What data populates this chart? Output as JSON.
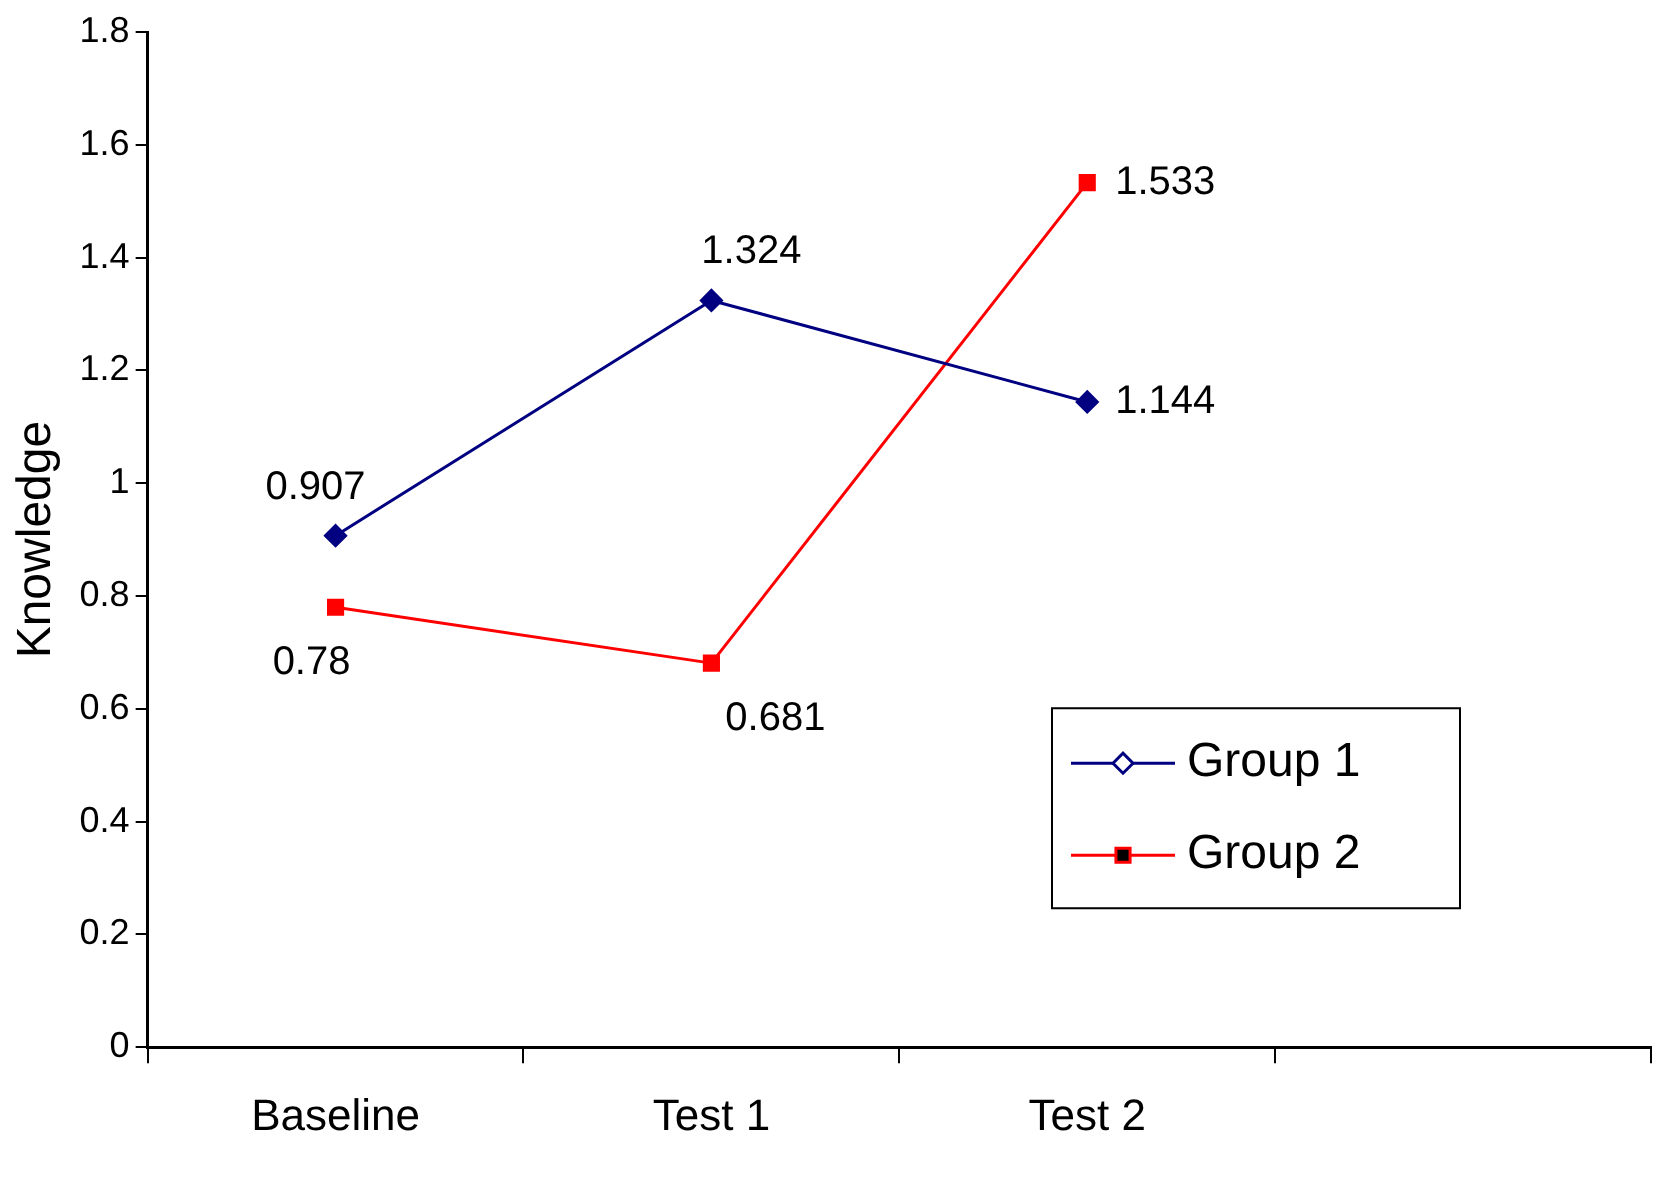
{
  "chart_data": {
    "type": "line",
    "ylabel": "Knowledge",
    "categories": [
      "Baseline",
      "Test 1",
      "Test 2",
      null
    ],
    "series": [
      {
        "name": "Group 1",
        "color": "#000080",
        "marker": "diamond",
        "values": [
          0.907,
          1.324,
          1.144,
          null
        ]
      },
      {
        "name": "Group 2",
        "color": "#ff0000",
        "marker": "square",
        "values": [
          0.78,
          0.681,
          1.533,
          null
        ]
      }
    ],
    "ylim": [
      0,
      1.8
    ],
    "yticks": [
      0,
      0.2,
      0.4,
      0.6,
      0.8,
      1,
      1.2,
      1.4,
      1.6,
      1.8
    ],
    "grid": false,
    "legend": "bottom right",
    "data_labels": true
  }
}
